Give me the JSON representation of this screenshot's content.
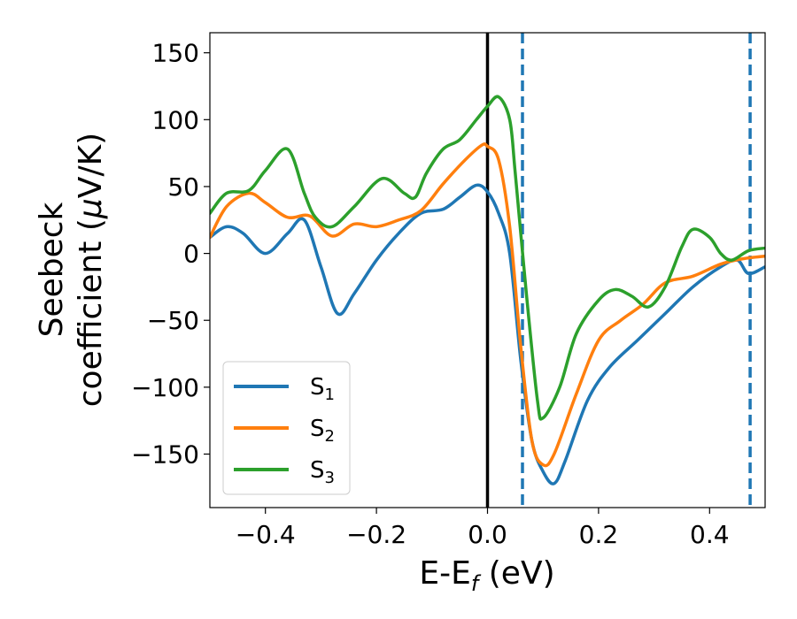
{
  "chart_data": {
    "type": "line",
    "xlabel": "E-E",
    "xlabel_sub": "f",
    "xlabel_unit": " (eV)",
    "ylabel_line1": "Seebeck",
    "ylabel_line2_pre": "coefficient  (",
    "ylabel_mu": "μ",
    "ylabel_line2_post": "V/K)",
    "xlim": [
      -0.5,
      0.5
    ],
    "ylim": [
      -190,
      165
    ],
    "xticks": [
      -0.4,
      -0.2,
      0.0,
      0.2,
      0.4
    ],
    "xtick_labels": [
      "−0.4",
      "−0.2",
      "0.0",
      "0.2",
      "0.4"
    ],
    "yticks": [
      -150,
      -100,
      -50,
      0,
      50,
      100,
      150
    ],
    "ytick_labels": [
      "−150",
      "−100",
      "−50",
      "0",
      "50",
      "100",
      "150"
    ],
    "grid": false,
    "legend_position": "lower-left",
    "vlines": [
      {
        "x": 0.0,
        "style": "solid",
        "color": "#000000"
      },
      {
        "x": 0.063,
        "style": "dashed",
        "color": "#1f77b4"
      },
      {
        "x": 0.473,
        "style": "dashed",
        "color": "#1f77b4"
      }
    ],
    "series": [
      {
        "name_base": "S",
        "name_sub": "1",
        "color": "#1f77b4",
        "points": [
          [
            -0.5,
            12
          ],
          [
            -0.47,
            20
          ],
          [
            -0.44,
            15
          ],
          [
            -0.4,
            0
          ],
          [
            -0.36,
            15
          ],
          [
            -0.33,
            25
          ],
          [
            -0.3,
            -10
          ],
          [
            -0.27,
            -45
          ],
          [
            -0.24,
            -30
          ],
          [
            -0.2,
            -5
          ],
          [
            -0.16,
            15
          ],
          [
            -0.12,
            30
          ],
          [
            -0.08,
            33
          ],
          [
            -0.05,
            42
          ],
          [
            -0.02,
            51
          ],
          [
            0.0,
            46
          ],
          [
            0.02,
            30
          ],
          [
            0.04,
            0
          ],
          [
            0.06,
            -80
          ],
          [
            0.08,
            -140
          ],
          [
            0.1,
            -163
          ],
          [
            0.12,
            -172
          ],
          [
            0.14,
            -155
          ],
          [
            0.18,
            -110
          ],
          [
            0.22,
            -85
          ],
          [
            0.27,
            -65
          ],
          [
            0.32,
            -45
          ],
          [
            0.37,
            -25
          ],
          [
            0.42,
            -10
          ],
          [
            0.45,
            -5
          ],
          [
            0.47,
            -15
          ],
          [
            0.5,
            -10
          ]
        ]
      },
      {
        "name_base": "S",
        "name_sub": "2",
        "color": "#ff7f0e",
        "points": [
          [
            -0.5,
            12
          ],
          [
            -0.47,
            35
          ],
          [
            -0.43,
            45
          ],
          [
            -0.4,
            38
          ],
          [
            -0.36,
            27
          ],
          [
            -0.32,
            28
          ],
          [
            -0.28,
            13
          ],
          [
            -0.24,
            22
          ],
          [
            -0.2,
            20
          ],
          [
            -0.16,
            25
          ],
          [
            -0.12,
            32
          ],
          [
            -0.08,
            52
          ],
          [
            -0.04,
            70
          ],
          [
            -0.01,
            81
          ],
          [
            0.0,
            80
          ],
          [
            0.02,
            70
          ],
          [
            0.04,
            20
          ],
          [
            0.06,
            -70
          ],
          [
            0.08,
            -140
          ],
          [
            0.1,
            -158
          ],
          [
            0.12,
            -150
          ],
          [
            0.16,
            -105
          ],
          [
            0.2,
            -65
          ],
          [
            0.24,
            -50
          ],
          [
            0.28,
            -38
          ],
          [
            0.32,
            -22
          ],
          [
            0.37,
            -17
          ],
          [
            0.42,
            -8
          ],
          [
            0.46,
            -4
          ],
          [
            0.5,
            -2
          ]
        ]
      },
      {
        "name_base": "S",
        "name_sub": "3",
        "color": "#2ca02c",
        "points": [
          [
            -0.5,
            30
          ],
          [
            -0.47,
            45
          ],
          [
            -0.43,
            47
          ],
          [
            -0.4,
            62
          ],
          [
            -0.36,
            78
          ],
          [
            -0.33,
            45
          ],
          [
            -0.31,
            27
          ],
          [
            -0.28,
            20
          ],
          [
            -0.24,
            35
          ],
          [
            -0.19,
            56
          ],
          [
            -0.15,
            45
          ],
          [
            -0.13,
            42
          ],
          [
            -0.11,
            60
          ],
          [
            -0.08,
            78
          ],
          [
            -0.05,
            85
          ],
          [
            -0.02,
            100
          ],
          [
            0.0,
            110
          ],
          [
            0.02,
            117
          ],
          [
            0.04,
            100
          ],
          [
            0.05,
            60
          ],
          [
            0.07,
            -30
          ],
          [
            0.09,
            -110
          ],
          [
            0.1,
            -123
          ],
          [
            0.13,
            -100
          ],
          [
            0.16,
            -60
          ],
          [
            0.2,
            -35
          ],
          [
            0.23,
            -27
          ],
          [
            0.26,
            -32
          ],
          [
            0.29,
            -40
          ],
          [
            0.32,
            -25
          ],
          [
            0.35,
            5
          ],
          [
            0.37,
            18
          ],
          [
            0.4,
            12
          ],
          [
            0.42,
            0
          ],
          [
            0.44,
            -5
          ],
          [
            0.47,
            2
          ],
          [
            0.5,
            4
          ]
        ]
      }
    ]
  }
}
